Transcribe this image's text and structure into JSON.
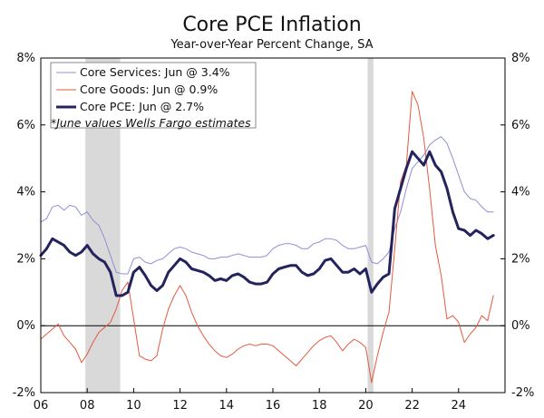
{
  "chart_data": {
    "type": "line",
    "title": "Core PCE Inflation",
    "subtitle": "Year-over-Year Percent Change, SA",
    "ylim": [
      -2,
      8
    ],
    "xlim": [
      2006,
      2026
    ],
    "y_ticks": [
      "-2%",
      "0%",
      "2%",
      "4%",
      "6%",
      "8%"
    ],
    "x_ticks": [
      "06",
      "08",
      "10",
      "12",
      "14",
      "16",
      "18",
      "20",
      "22",
      "24"
    ],
    "recessions": [
      [
        2007.92,
        2009.42
      ],
      [
        2020.08,
        2020.33
      ]
    ],
    "legend": {
      "position": "top-left",
      "items": [
        "Core Services: Jun @ 3.4%",
        "Core Goods: Jun @ 0.9%",
        "Core PCE: Jun @ 2.7%"
      ],
      "note": "*June values Wells Fargo estimates"
    },
    "series": [
      {
        "name": "Core Services",
        "color": "#8f8fd6",
        "width": 1,
        "points": [
          [
            2006.0,
            3.1
          ],
          [
            2006.25,
            3.2
          ],
          [
            2006.5,
            3.55
          ],
          [
            2006.75,
            3.6
          ],
          [
            2007.0,
            3.45
          ],
          [
            2007.25,
            3.6
          ],
          [
            2007.5,
            3.55
          ],
          [
            2007.75,
            3.3
          ],
          [
            2008.0,
            3.4
          ],
          [
            2008.25,
            3.15
          ],
          [
            2008.5,
            3.0
          ],
          [
            2008.75,
            2.6
          ],
          [
            2009.0,
            2.1
          ],
          [
            2009.25,
            1.6
          ],
          [
            2009.5,
            1.55
          ],
          [
            2009.75,
            1.55
          ],
          [
            2010.0,
            2.0
          ],
          [
            2010.25,
            2.05
          ],
          [
            2010.5,
            1.9
          ],
          [
            2010.75,
            1.85
          ],
          [
            2011.0,
            1.95
          ],
          [
            2011.25,
            2.0
          ],
          [
            2011.5,
            2.15
          ],
          [
            2011.75,
            2.3
          ],
          [
            2012.0,
            2.35
          ],
          [
            2012.25,
            2.3
          ],
          [
            2012.5,
            2.2
          ],
          [
            2012.75,
            2.15
          ],
          [
            2013.0,
            2.1
          ],
          [
            2013.25,
            2.0
          ],
          [
            2013.5,
            2.0
          ],
          [
            2013.75,
            2.05
          ],
          [
            2014.0,
            2.05
          ],
          [
            2014.25,
            2.1
          ],
          [
            2014.5,
            2.15
          ],
          [
            2014.75,
            2.1
          ],
          [
            2015.0,
            2.05
          ],
          [
            2015.25,
            2.05
          ],
          [
            2015.5,
            2.05
          ],
          [
            2015.75,
            2.1
          ],
          [
            2016.0,
            2.3
          ],
          [
            2016.25,
            2.4
          ],
          [
            2016.5,
            2.45
          ],
          [
            2016.75,
            2.45
          ],
          [
            2017.0,
            2.4
          ],
          [
            2017.25,
            2.3
          ],
          [
            2017.5,
            2.3
          ],
          [
            2017.75,
            2.45
          ],
          [
            2018.0,
            2.5
          ],
          [
            2018.25,
            2.6
          ],
          [
            2018.5,
            2.6
          ],
          [
            2018.75,
            2.55
          ],
          [
            2019.0,
            2.4
          ],
          [
            2019.25,
            2.3
          ],
          [
            2019.5,
            2.3
          ],
          [
            2019.75,
            2.35
          ],
          [
            2020.0,
            2.4
          ],
          [
            2020.25,
            1.9
          ],
          [
            2020.5,
            1.85
          ],
          [
            2020.75,
            2.0
          ],
          [
            2021.0,
            2.2
          ],
          [
            2021.25,
            2.9
          ],
          [
            2021.5,
            3.4
          ],
          [
            2021.75,
            4.1
          ],
          [
            2022.0,
            4.7
          ],
          [
            2022.25,
            4.9
          ],
          [
            2022.5,
            5.1
          ],
          [
            2022.75,
            5.4
          ],
          [
            2023.0,
            5.55
          ],
          [
            2023.25,
            5.65
          ],
          [
            2023.5,
            5.45
          ],
          [
            2023.75,
            5.0
          ],
          [
            2024.0,
            4.5
          ],
          [
            2024.25,
            4.0
          ],
          [
            2024.5,
            3.8
          ],
          [
            2024.75,
            3.75
          ],
          [
            2025.0,
            3.55
          ],
          [
            2025.25,
            3.4
          ],
          [
            2025.5,
            3.4
          ]
        ]
      },
      {
        "name": "Core Goods",
        "color": "#e35a40",
        "width": 1,
        "points": [
          [
            2006.0,
            -0.4
          ],
          [
            2006.25,
            -0.25
          ],
          [
            2006.5,
            -0.1
          ],
          [
            2006.75,
            0.05
          ],
          [
            2007.0,
            -0.3
          ],
          [
            2007.25,
            -0.5
          ],
          [
            2007.5,
            -0.7
          ],
          [
            2007.75,
            -1.1
          ],
          [
            2008.0,
            -0.85
          ],
          [
            2008.25,
            -0.5
          ],
          [
            2008.5,
            -0.2
          ],
          [
            2008.75,
            -0.05
          ],
          [
            2009.0,
            0.1
          ],
          [
            2009.25,
            0.5
          ],
          [
            2009.5,
            1.05
          ],
          [
            2009.75,
            1.3
          ],
          [
            2010.0,
            0.2
          ],
          [
            2010.25,
            -0.9
          ],
          [
            2010.5,
            -1.0
          ],
          [
            2010.75,
            -1.05
          ],
          [
            2011.0,
            -0.9
          ],
          [
            2011.25,
            -0.1
          ],
          [
            2011.5,
            0.5
          ],
          [
            2011.75,
            0.9
          ],
          [
            2012.0,
            1.2
          ],
          [
            2012.25,
            0.9
          ],
          [
            2012.5,
            0.4
          ],
          [
            2012.75,
            0.0
          ],
          [
            2013.0,
            -0.3
          ],
          [
            2013.25,
            -0.55
          ],
          [
            2013.5,
            -0.75
          ],
          [
            2013.75,
            -0.9
          ],
          [
            2014.0,
            -0.95
          ],
          [
            2014.25,
            -0.85
          ],
          [
            2014.5,
            -0.7
          ],
          [
            2014.75,
            -0.6
          ],
          [
            2015.0,
            -0.55
          ],
          [
            2015.25,
            -0.6
          ],
          [
            2015.5,
            -0.55
          ],
          [
            2015.75,
            -0.55
          ],
          [
            2016.0,
            -0.6
          ],
          [
            2016.25,
            -0.75
          ],
          [
            2016.5,
            -0.9
          ],
          [
            2016.75,
            -1.05
          ],
          [
            2017.0,
            -1.2
          ],
          [
            2017.25,
            -1.0
          ],
          [
            2017.5,
            -0.8
          ],
          [
            2017.75,
            -0.6
          ],
          [
            2018.0,
            -0.45
          ],
          [
            2018.25,
            -0.35
          ],
          [
            2018.5,
            -0.3
          ],
          [
            2018.75,
            -0.5
          ],
          [
            2019.0,
            -0.75
          ],
          [
            2019.25,
            -0.55
          ],
          [
            2019.5,
            -0.4
          ],
          [
            2019.75,
            -0.5
          ],
          [
            2020.0,
            -0.65
          ],
          [
            2020.25,
            -1.7
          ],
          [
            2020.5,
            -0.9
          ],
          [
            2020.75,
            -0.2
          ],
          [
            2021.0,
            0.4
          ],
          [
            2021.25,
            2.3
          ],
          [
            2021.5,
            4.3
          ],
          [
            2021.75,
            4.8
          ],
          [
            2022.0,
            7.0
          ],
          [
            2022.25,
            6.6
          ],
          [
            2022.5,
            5.6
          ],
          [
            2022.75,
            4.1
          ],
          [
            2023.0,
            2.4
          ],
          [
            2023.25,
            1.5
          ],
          [
            2023.5,
            0.2
          ],
          [
            2023.75,
            0.3
          ],
          [
            2024.0,
            0.1
          ],
          [
            2024.25,
            -0.5
          ],
          [
            2024.5,
            -0.25
          ],
          [
            2024.75,
            -0.05
          ],
          [
            2025.0,
            0.3
          ],
          [
            2025.25,
            0.15
          ],
          [
            2025.5,
            0.9
          ]
        ]
      },
      {
        "name": "Core PCE",
        "color": "#23235e",
        "width": 3,
        "points": [
          [
            2006.0,
            2.1
          ],
          [
            2006.25,
            2.3
          ],
          [
            2006.5,
            2.6
          ],
          [
            2006.75,
            2.5
          ],
          [
            2007.0,
            2.4
          ],
          [
            2007.25,
            2.2
          ],
          [
            2007.5,
            2.1
          ],
          [
            2007.75,
            2.2
          ],
          [
            2008.0,
            2.4
          ],
          [
            2008.25,
            2.15
          ],
          [
            2008.5,
            2.0
          ],
          [
            2008.75,
            1.9
          ],
          [
            2009.0,
            1.6
          ],
          [
            2009.25,
            0.9
          ],
          [
            2009.5,
            0.9
          ],
          [
            2009.75,
            1.0
          ],
          [
            2010.0,
            1.6
          ],
          [
            2010.25,
            1.75
          ],
          [
            2010.5,
            1.5
          ],
          [
            2010.75,
            1.2
          ],
          [
            2011.0,
            1.05
          ],
          [
            2011.25,
            1.2
          ],
          [
            2011.5,
            1.6
          ],
          [
            2011.75,
            1.8
          ],
          [
            2012.0,
            2.0
          ],
          [
            2012.25,
            1.9
          ],
          [
            2012.5,
            1.7
          ],
          [
            2012.75,
            1.65
          ],
          [
            2013.0,
            1.6
          ],
          [
            2013.25,
            1.5
          ],
          [
            2013.5,
            1.35
          ],
          [
            2013.75,
            1.4
          ],
          [
            2014.0,
            1.35
          ],
          [
            2014.25,
            1.5
          ],
          [
            2014.5,
            1.55
          ],
          [
            2014.75,
            1.45
          ],
          [
            2015.0,
            1.3
          ],
          [
            2015.25,
            1.25
          ],
          [
            2015.5,
            1.25
          ],
          [
            2015.75,
            1.3
          ],
          [
            2016.0,
            1.55
          ],
          [
            2016.25,
            1.7
          ],
          [
            2016.5,
            1.75
          ],
          [
            2016.75,
            1.8
          ],
          [
            2017.0,
            1.8
          ],
          [
            2017.25,
            1.6
          ],
          [
            2017.5,
            1.5
          ],
          [
            2017.75,
            1.55
          ],
          [
            2018.0,
            1.7
          ],
          [
            2018.25,
            1.95
          ],
          [
            2018.5,
            2.0
          ],
          [
            2018.75,
            1.8
          ],
          [
            2019.0,
            1.6
          ],
          [
            2019.25,
            1.6
          ],
          [
            2019.5,
            1.7
          ],
          [
            2019.75,
            1.55
          ],
          [
            2020.0,
            1.7
          ],
          [
            2020.25,
            1.0
          ],
          [
            2020.5,
            1.25
          ],
          [
            2020.75,
            1.45
          ],
          [
            2021.0,
            1.55
          ],
          [
            2021.25,
            3.5
          ],
          [
            2021.5,
            4.1
          ],
          [
            2021.75,
            4.7
          ],
          [
            2022.0,
            5.2
          ],
          [
            2022.25,
            5.0
          ],
          [
            2022.5,
            4.8
          ],
          [
            2022.75,
            5.2
          ],
          [
            2023.0,
            4.8
          ],
          [
            2023.25,
            4.6
          ],
          [
            2023.5,
            4.1
          ],
          [
            2023.75,
            3.4
          ],
          [
            2024.0,
            2.9
          ],
          [
            2024.25,
            2.85
          ],
          [
            2024.5,
            2.7
          ],
          [
            2024.75,
            2.85
          ],
          [
            2025.0,
            2.75
          ],
          [
            2025.25,
            2.6
          ],
          [
            2025.5,
            2.7
          ]
        ]
      }
    ]
  }
}
